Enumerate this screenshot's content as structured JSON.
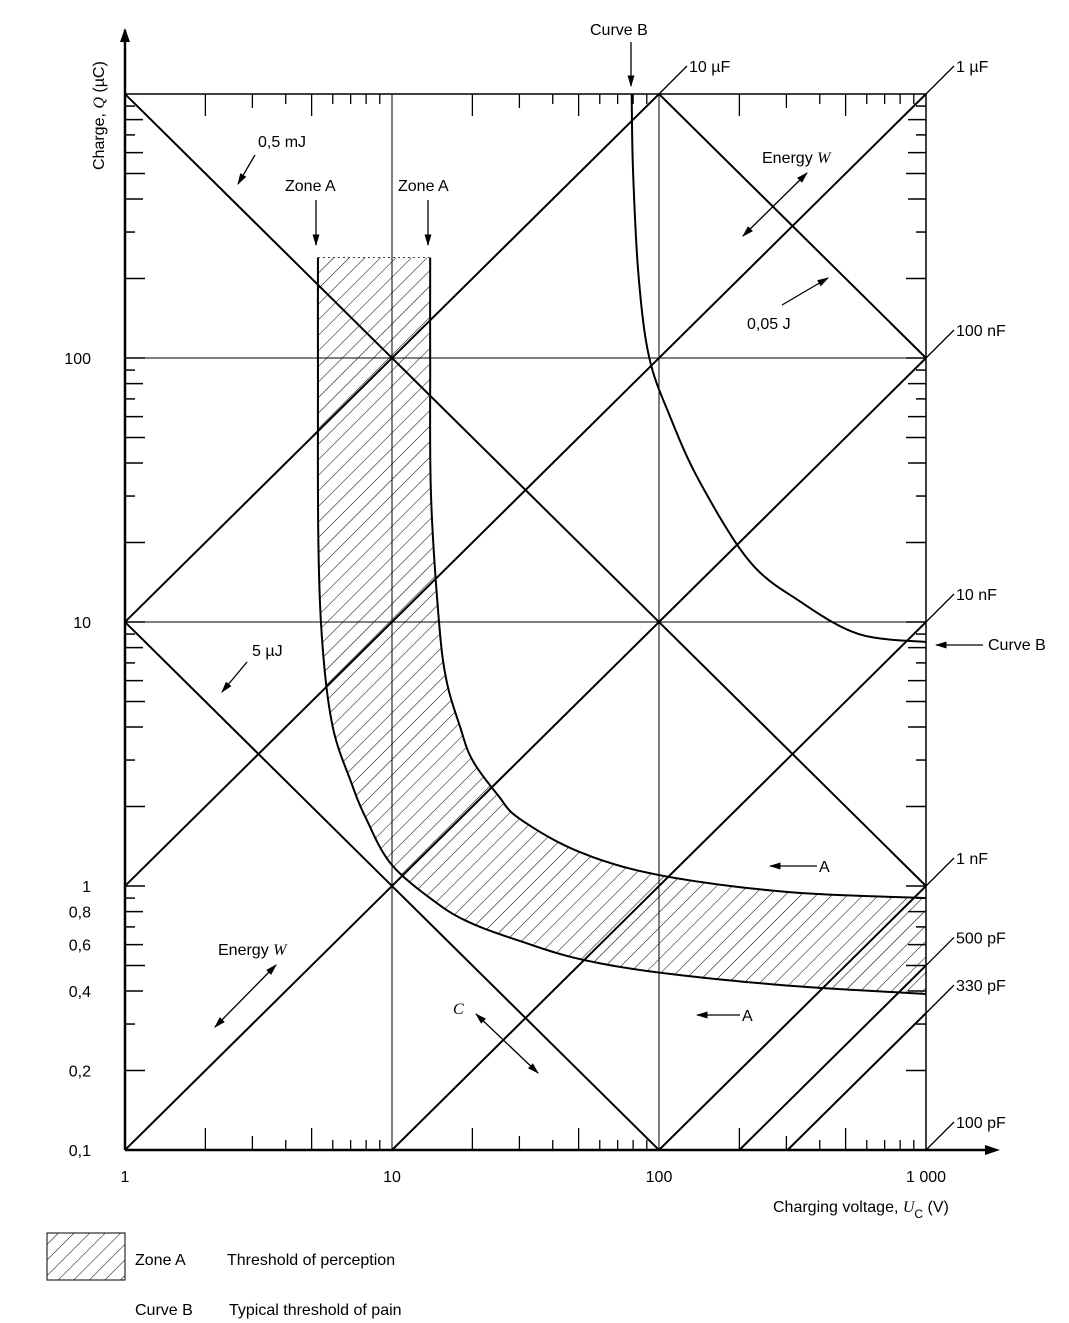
{
  "chart_data": {
    "type": "line",
    "xscale": "log",
    "yscale": "log",
    "xlim": [
      1,
      1000
    ],
    "ylim": [
      0.1,
      1000
    ],
    "xlabel": {
      "pre": "Charging voltage, ",
      "var": "U",
      "sub": "C",
      "post": " (V)"
    },
    "ylabel": {
      "pre": "Charge, ",
      "var": "Q",
      "post": " (µC)"
    },
    "x_ticks": [
      {
        "value": 1,
        "label": "1"
      },
      {
        "value": 10,
        "label": "10"
      },
      {
        "value": 100,
        "label": "100"
      },
      {
        "value": 1000,
        "label": "1 000"
      }
    ],
    "y_ticks": [
      {
        "value": 100,
        "label": "100"
      },
      {
        "value": 10,
        "label": "10"
      },
      {
        "value": 1,
        "label": "1"
      },
      {
        "value": 0.8,
        "label": "0,8"
      },
      {
        "value": 0.6,
        "label": "0,6"
      },
      {
        "value": 0.4,
        "label": "0,4"
      },
      {
        "value": 0.2,
        "label": "0,2"
      },
      {
        "value": 0.1,
        "label": "0,1"
      }
    ],
    "grid": {
      "x": [
        10,
        100,
        1000
      ],
      "y": [
        10,
        100,
        1000
      ]
    },
    "capacitance_lines": [
      {
        "label": "10 µF",
        "value_uF": 10
      },
      {
        "label": "1 µF",
        "value_uF": 1
      },
      {
        "label": "100 nF",
        "value_uF": 0.1
      },
      {
        "label": "10 nF",
        "value_uF": 0.01
      },
      {
        "label": "1 nF",
        "value_uF": 0.001
      },
      {
        "label": "500 pF",
        "value_uF": 0.0005
      },
      {
        "label": "330 pF",
        "value_uF": 0.00033
      },
      {
        "label": "100 pF",
        "value_uF": 0.0001
      }
    ],
    "energy_lines": [
      {
        "label": "0,5 mJ",
        "value_uJ": 500
      },
      {
        "label": "0,05 J",
        "value_uJ": 50000
      },
      {
        "label": "5 µJ",
        "value_uJ": 5
      }
    ],
    "zone_a": {
      "name": "Zone A",
      "lower_boundary": [
        [
          5.28,
          240
        ],
        [
          5.28,
          100
        ],
        [
          5.3,
          20
        ],
        [
          5.5,
          8
        ],
        [
          6,
          4
        ],
        [
          7,
          2.5
        ],
        [
          8,
          1.8
        ],
        [
          10,
          1.2
        ],
        [
          15,
          0.85
        ],
        [
          20,
          0.72
        ],
        [
          30,
          0.62
        ],
        [
          50,
          0.53
        ],
        [
          100,
          0.47
        ],
        [
          300,
          0.42
        ],
        [
          1000,
          0.39
        ]
      ],
      "upper_boundary": [
        [
          13.9,
          240
        ],
        [
          13.9,
          100
        ],
        [
          14,
          30
        ],
        [
          15,
          10
        ],
        [
          16,
          6
        ],
        [
          18,
          4
        ],
        [
          20,
          3
        ],
        [
          25,
          2.2
        ],
        [
          30,
          1.8
        ],
        [
          50,
          1.35
        ],
        [
          100,
          1.1
        ],
        [
          300,
          0.95
        ],
        [
          1000,
          0.9
        ]
      ]
    },
    "curve_b": {
      "name": "Curve B",
      "points": [
        [
          79,
          1000
        ],
        [
          80,
          500
        ],
        [
          84,
          200
        ],
        [
          92,
          100
        ],
        [
          110,
          60
        ],
        [
          142,
          34
        ],
        [
          218,
          17
        ],
        [
          336,
          12
        ],
        [
          560,
          9
        ],
        [
          1000,
          8.4
        ]
      ]
    },
    "annotations": {
      "energy_05mJ": "0,5 mJ",
      "zone_a_left": "Zone A",
      "zone_a_right": "Zone A",
      "curve_b_top": "Curve B",
      "energy_w_top": {
        "pre": "Energy ",
        "var": "W"
      },
      "energy_005J": "0,05 J",
      "energy_5uJ": "5 µJ",
      "curve_b_right": "Curve B",
      "a_upper": "A",
      "a_lower": "A",
      "energy_w_bottom": {
        "pre": "Energy ",
        "var": "W"
      },
      "c": "C"
    },
    "legend": [
      {
        "key": "Zone A",
        "text": "Threshold of perception",
        "style": "hatched"
      },
      {
        "key": "Curve B",
        "text": "Typical threshold of pain",
        "style": "none"
      }
    ]
  }
}
